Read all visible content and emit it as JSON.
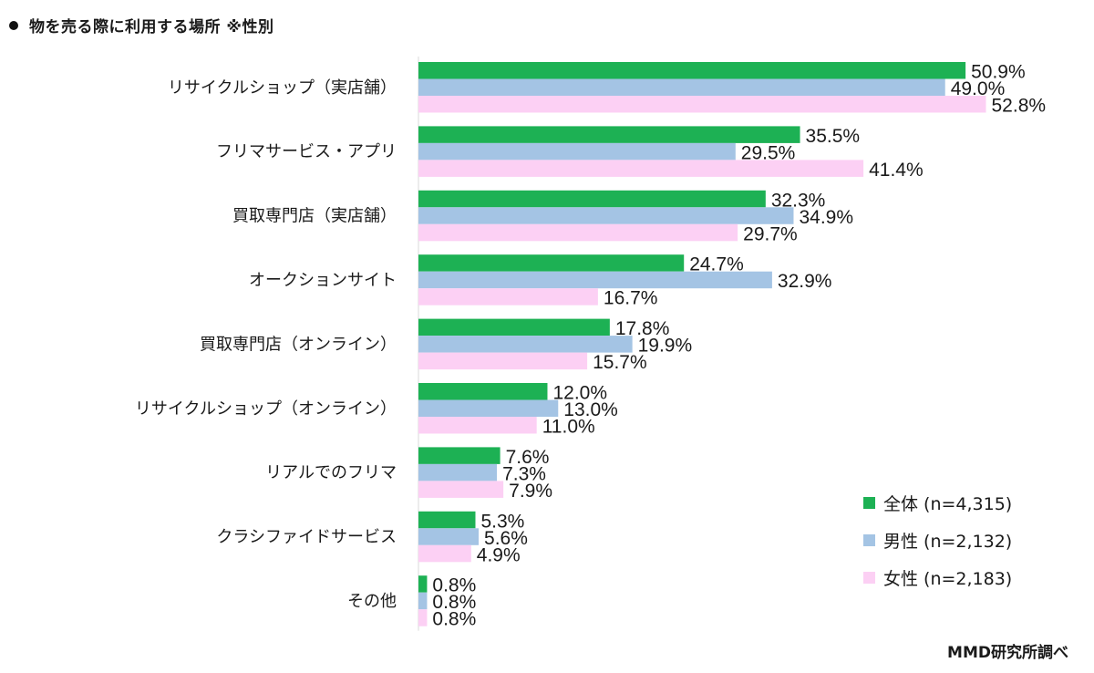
{
  "title": "物を売る際に利用する場所 ※性別",
  "source": "MMD研究所調べ",
  "chart_data": {
    "type": "bar",
    "orientation": "horizontal",
    "categories": [
      "リサイクルショップ（実店舗）",
      "フリマサービス・アプリ",
      "買取専門店（実店舗）",
      "オークションサイト",
      "買取専門店（オンライン）",
      "リサイクルショップ（オンライン）",
      "リアルでのフリマ",
      "クラシファイドサービス",
      "その他"
    ],
    "series": [
      {
        "name": "全体 (n=4,315)",
        "color": "#1db154",
        "values": [
          50.9,
          35.5,
          32.3,
          24.7,
          17.8,
          12.0,
          7.6,
          5.3,
          0.8
        ]
      },
      {
        "name": "男性 (n=2,132)",
        "color": "#a4c4e4",
        "values": [
          49.0,
          29.5,
          34.9,
          32.9,
          19.9,
          13.0,
          7.3,
          5.6,
          0.8
        ]
      },
      {
        "name": "女性 (n=2,183)",
        "color": "#fcd0f4",
        "values": [
          52.8,
          41.4,
          29.7,
          16.7,
          15.7,
          11.0,
          7.9,
          4.9,
          0.8
        ]
      }
    ],
    "value_suffix": "%",
    "xlim": [
      0,
      60
    ],
    "legend_position": "bottom-right",
    "grid": false
  }
}
